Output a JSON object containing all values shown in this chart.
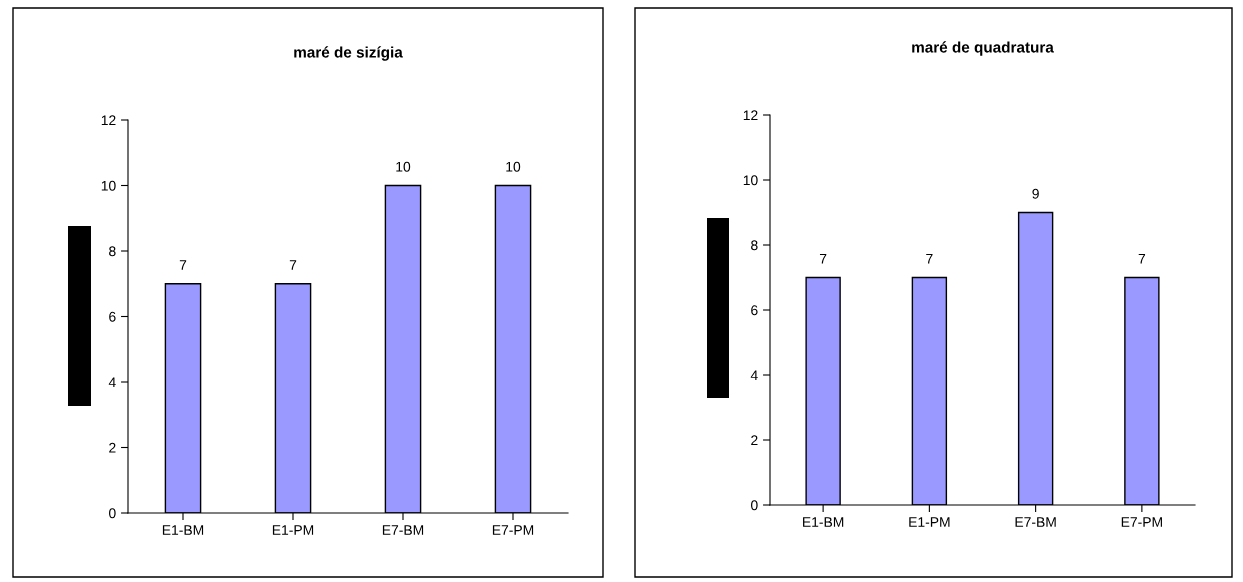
{
  "chart_data": [
    {
      "type": "bar",
      "title": "maré de sizígia",
      "categories": [
        "E1-BM",
        "E1-PM",
        "E7-BM",
        "E7-PM"
      ],
      "values": [
        7,
        7,
        10,
        10
      ],
      "color": "#9999ff",
      "ylim": [
        0,
        12
      ],
      "yticks": [
        0,
        2,
        4,
        6,
        8,
        10,
        12
      ],
      "data_labels": true,
      "grid": false,
      "legend": false
    },
    {
      "type": "bar",
      "title": "maré de quadratura",
      "categories": [
        "E1-BM",
        "E1-PM",
        "E7-BM",
        "E7-PM"
      ],
      "values": [
        7,
        7,
        9,
        7
      ],
      "color": "#9999ff",
      "ylim": [
        0,
        12
      ],
      "yticks": [
        0,
        2,
        4,
        6,
        8,
        10,
        12
      ],
      "data_labels": true,
      "grid": false,
      "legend": false
    }
  ]
}
